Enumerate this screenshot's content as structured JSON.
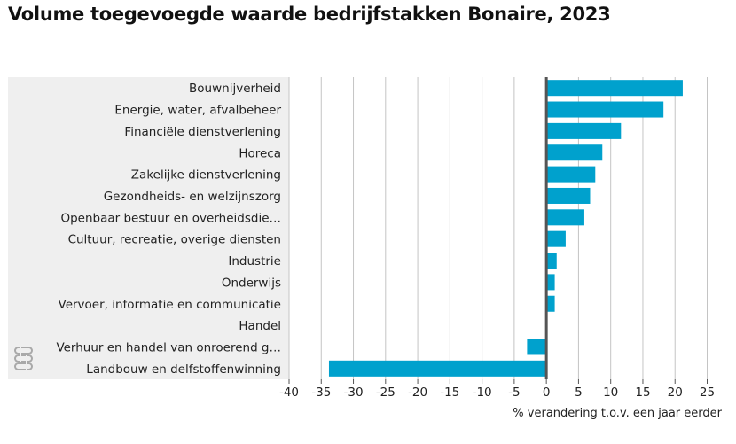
{
  "title": "Volume toegevoegde waarde bedrijfstakken Bonaire, 2023",
  "logo": {
    "icon": "cbs-logo-icon"
  },
  "chart_data": {
    "type": "bar",
    "orientation": "horizontal",
    "title": "Volume toegevoegde waarde bedrijfstakken Bonaire, 2023",
    "xlabel": "% verandering t.o.v. een jaar eerder",
    "ylabel": "",
    "xlim": [
      -40,
      25
    ],
    "xticks": [
      -40,
      -35,
      -30,
      -25,
      -20,
      -15,
      -10,
      -5,
      0,
      5,
      10,
      15,
      20,
      25
    ],
    "grid": true,
    "bar_color": "#00a1cd",
    "categories": [
      "Bouwnijverheid",
      "Energie, water, afvalbeheer",
      "Financiële dienstverlening",
      "Horeca",
      "Zakelijke dienstverlening",
      "Gezondheids- en welzijnszorg",
      "Openbaar bestuur en overheidsdie…",
      "Cultuur, recreatie, overige diensten",
      "Industrie",
      "Onderwijs",
      "Vervoer, informatie en communicatie",
      "Handel",
      "Verhuur en handel van onroerend g…",
      "Landbouw en delfstoffenwinning"
    ],
    "values": [
      21.2,
      18.2,
      11.6,
      8.7,
      7.6,
      6.8,
      5.9,
      3.0,
      1.6,
      1.3,
      1.3,
      0.0,
      -3.0,
      -33.8
    ]
  }
}
